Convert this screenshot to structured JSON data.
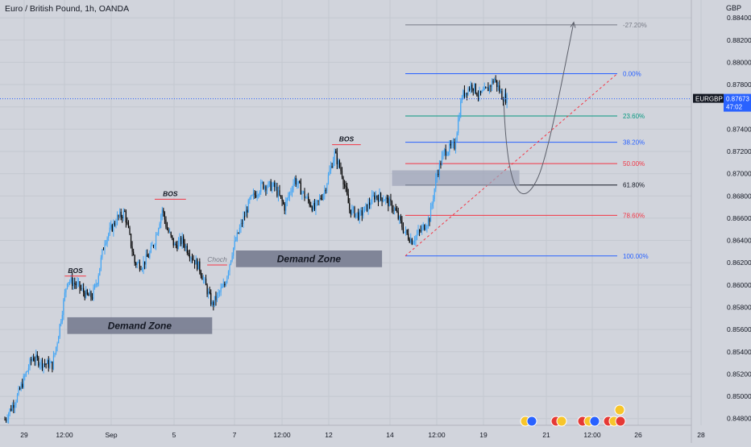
{
  "header": {
    "title": "Euro / British Pound, 1h, OANDA",
    "currency": "GBP"
  },
  "price_tag": {
    "symbol": "EURGBP",
    "price": "0.87673",
    "countdown": "47:02"
  },
  "chart_data": {
    "type": "candlestick",
    "title": "Euro / British Pound, 1h, OANDA",
    "symbol": "EURGBP",
    "last_price": 0.87673,
    "ylim": [
      0.8474,
      0.8856
    ],
    "y_ticks": [
      "0.84800",
      "0.85000",
      "0.85200",
      "0.85400",
      "0.85600",
      "0.85800",
      "0.86000",
      "0.86200",
      "0.86400",
      "0.86600",
      "0.86800",
      "0.87000",
      "0.87200",
      "0.87400",
      "0.87600",
      "0.87800",
      "0.88000",
      "0.88200",
      "0.88400"
    ],
    "x_ticks": [
      "29",
      "12:00",
      "Sep",
      "5",
      "7",
      "12:00",
      "12",
      "14",
      "12:00",
      "19",
      "21",
      "12:00",
      "26",
      "28"
    ],
    "grid": true,
    "price_path": [
      {
        "i": 0,
        "v": 0.8479
      },
      {
        "i": 10,
        "v": 0.85
      },
      {
        "i": 22,
        "v": 0.8535
      },
      {
        "i": 30,
        "v": 0.853
      },
      {
        "i": 38,
        "v": 0.8528
      },
      {
        "i": 42,
        "v": 0.855
      },
      {
        "i": 50,
        "v": 0.8605
      },
      {
        "i": 58,
        "v": 0.86
      },
      {
        "i": 66,
        "v": 0.859
      },
      {
        "i": 70,
        "v": 0.859
      },
      {
        "i": 74,
        "v": 0.8605
      },
      {
        "i": 80,
        "v": 0.864
      },
      {
        "i": 90,
        "v": 0.866
      },
      {
        "i": 96,
        "v": 0.8665
      },
      {
        "i": 104,
        "v": 0.862
      },
      {
        "i": 110,
        "v": 0.8618
      },
      {
        "i": 116,
        "v": 0.8628
      },
      {
        "i": 120,
        "v": 0.864
      },
      {
        "i": 126,
        "v": 0.8668
      },
      {
        "i": 130,
        "v": 0.865
      },
      {
        "i": 136,
        "v": 0.8635
      },
      {
        "i": 142,
        "v": 0.864
      },
      {
        "i": 150,
        "v": 0.8625
      },
      {
        "i": 156,
        "v": 0.8615
      },
      {
        "i": 162,
        "v": 0.8595
      },
      {
        "i": 166,
        "v": 0.8582
      },
      {
        "i": 170,
        "v": 0.859
      },
      {
        "i": 176,
        "v": 0.86
      },
      {
        "i": 182,
        "v": 0.863
      },
      {
        "i": 188,
        "v": 0.865
      },
      {
        "i": 196,
        "v": 0.8675
      },
      {
        "i": 206,
        "v": 0.869
      },
      {
        "i": 216,
        "v": 0.8688
      },
      {
        "i": 224,
        "v": 0.867
      },
      {
        "i": 232,
        "v": 0.8695
      },
      {
        "i": 240,
        "v": 0.868
      },
      {
        "i": 248,
        "v": 0.8668
      },
      {
        "i": 256,
        "v": 0.8685
      },
      {
        "i": 264,
        "v": 0.8718
      },
      {
        "i": 270,
        "v": 0.87
      },
      {
        "i": 276,
        "v": 0.8668
      },
      {
        "i": 284,
        "v": 0.8662
      },
      {
        "i": 290,
        "v": 0.867
      },
      {
        "i": 296,
        "v": 0.868
      },
      {
        "i": 304,
        "v": 0.8678
      },
      {
        "i": 312,
        "v": 0.8668
      },
      {
        "i": 320,
        "v": 0.8648
      },
      {
        "i": 326,
        "v": 0.864
      },
      {
        "i": 334,
        "v": 0.865
      },
      {
        "i": 340,
        "v": 0.866
      },
      {
        "i": 346,
        "v": 0.87
      },
      {
        "i": 352,
        "v": 0.872
      },
      {
        "i": 360,
        "v": 0.8725
      },
      {
        "i": 366,
        "v": 0.877
      },
      {
        "i": 374,
        "v": 0.878
      },
      {
        "i": 380,
        "v": 0.877
      },
      {
        "i": 386,
        "v": 0.8775
      },
      {
        "i": 392,
        "v": 0.8785
      },
      {
        "i": 398,
        "v": 0.877
      },
      {
        "i": 402,
        "v": 0.8767
      }
    ],
    "fibonacci": [
      {
        "label": "-27.20%",
        "price": 0.88337,
        "color": "#787b86"
      },
      {
        "label": "0.00%",
        "price": 0.87898,
        "color": "#2962ff"
      },
      {
        "label": "23.60%",
        "price": 0.87518,
        "color": "#089981"
      },
      {
        "label": "38.20%",
        "price": 0.87282,
        "color": "#2962ff"
      },
      {
        "label": "50.00%",
        "price": 0.8709,
        "color": "#f23645"
      },
      {
        "label": "61.80%",
        "price": 0.86898,
        "color": "#131722"
      },
      {
        "label": "78.60%",
        "price": 0.86626,
        "color": "#f23645"
      },
      {
        "label": "100.00%",
        "price": 0.86261,
        "color": "#2962ff"
      }
    ],
    "annotations": [
      {
        "text": "BOS",
        "price": 0.8608,
        "i0": 48,
        "i1": 65
      },
      {
        "text": "BOS",
        "price": 0.8677,
        "i0": 120,
        "i1": 145
      },
      {
        "text": "Choch",
        "price": 0.8618,
        "i0": 162,
        "i1": 178
      },
      {
        "text": "BOS",
        "price": 0.8726,
        "i0": 262,
        "i1": 285
      }
    ],
    "zones": [
      {
        "text": "Demand Zone",
        "top": 0.8571,
        "bottom": 0.8556,
        "i0": 50,
        "i1": 166
      },
      {
        "text": "Demand Zone",
        "top": 0.8631,
        "bottom": 0.8616,
        "i0": 185,
        "i1": 302
      },
      {
        "text": "",
        "top": 0.8703,
        "bottom": 0.8689,
        "i0": 310,
        "i1": 412
      }
    ],
    "colors": {
      "up": "#089981",
      "bar": "#000000",
      "wick": "#42a5f5",
      "price_line": "#2962ff",
      "tag_bg": "#2962ff"
    }
  },
  "events": {
    "count": 11,
    "colors": [
      "#f7c52a",
      "#2962ff",
      "#e53935",
      "#f7c52a",
      "#e53935"
    ]
  }
}
